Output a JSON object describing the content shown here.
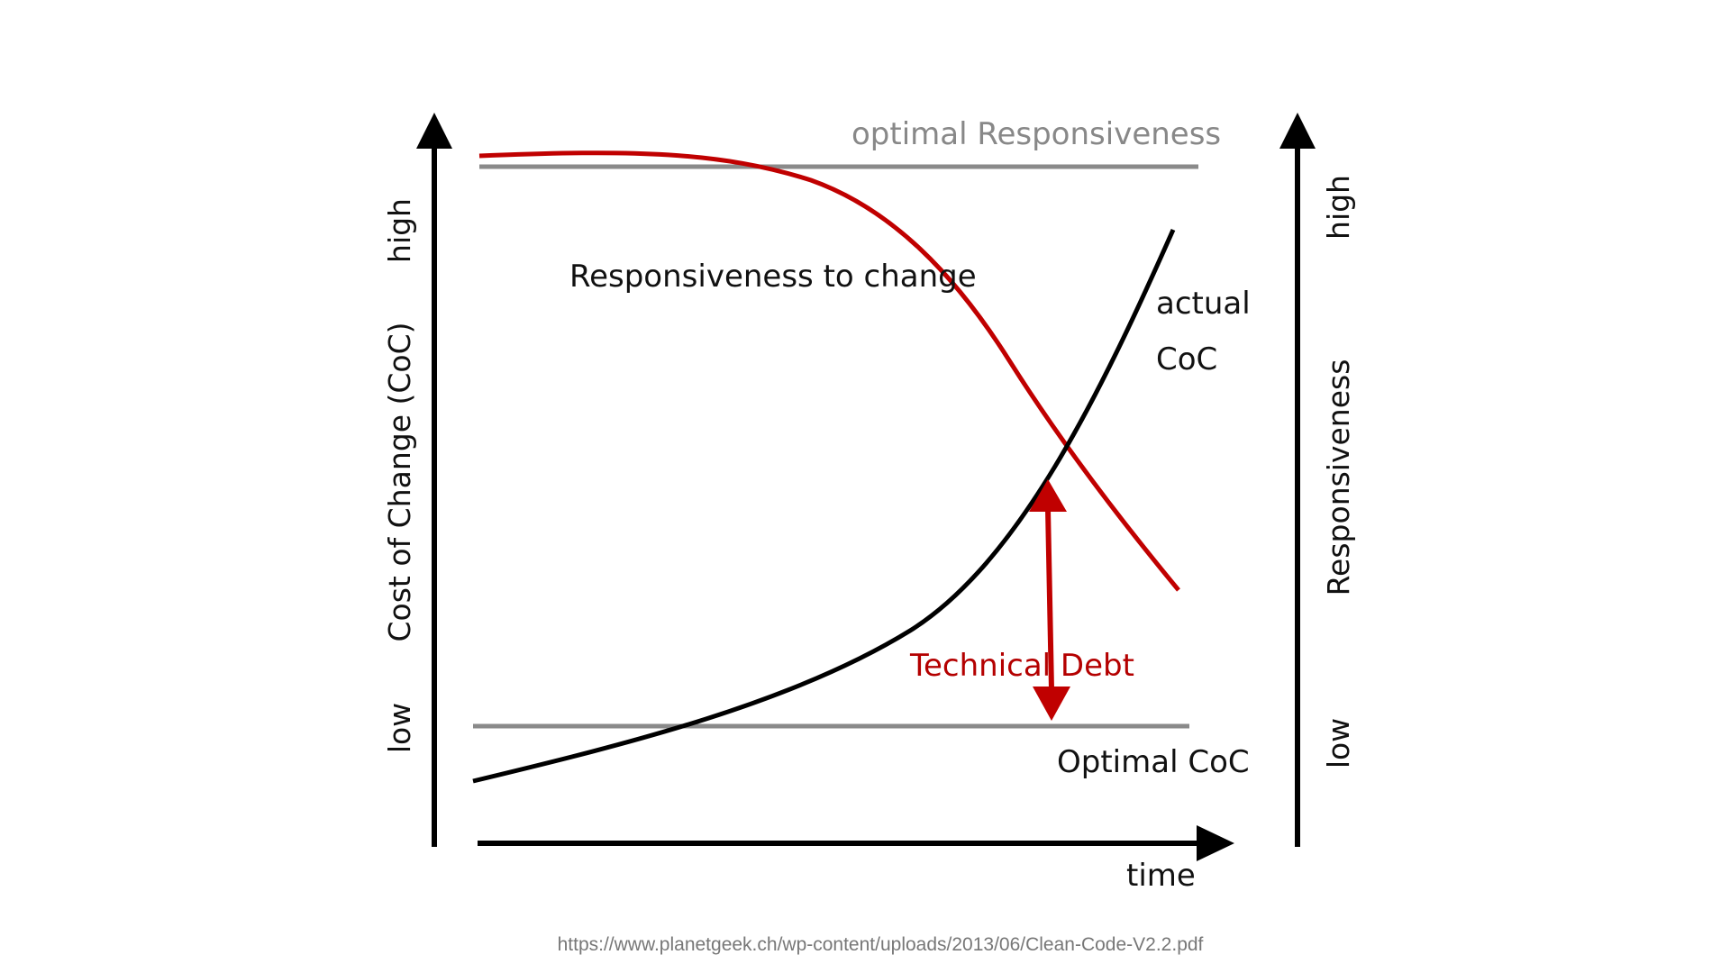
{
  "diagram": {
    "left_axis": {
      "title": "Cost of Change (CoC)",
      "high": "high",
      "low": "low"
    },
    "right_axis": {
      "title": "Responsiveness",
      "high": "high",
      "low": "low"
    },
    "x_axis": {
      "title": "time"
    },
    "labels": {
      "optimal_responsiveness": "optimal Responsiveness",
      "responsiveness_to_change": "Responsiveness to change",
      "actual_coc_line1": "actual",
      "actual_coc_line2": "CoC",
      "technical_debt": "Technical Debt",
      "optimal_coc": "Optimal CoC"
    },
    "source_url": "https://www.planetgeek.ch/wp-content/uploads/2013/06/Clean-Code-V2.2.pdf"
  },
  "colors": {
    "axis": "#000000",
    "reference_line": "#8a8a8a",
    "responsiveness_curve": "#c00000",
    "coc_curve": "#000000",
    "technical_debt": "#c00000"
  }
}
